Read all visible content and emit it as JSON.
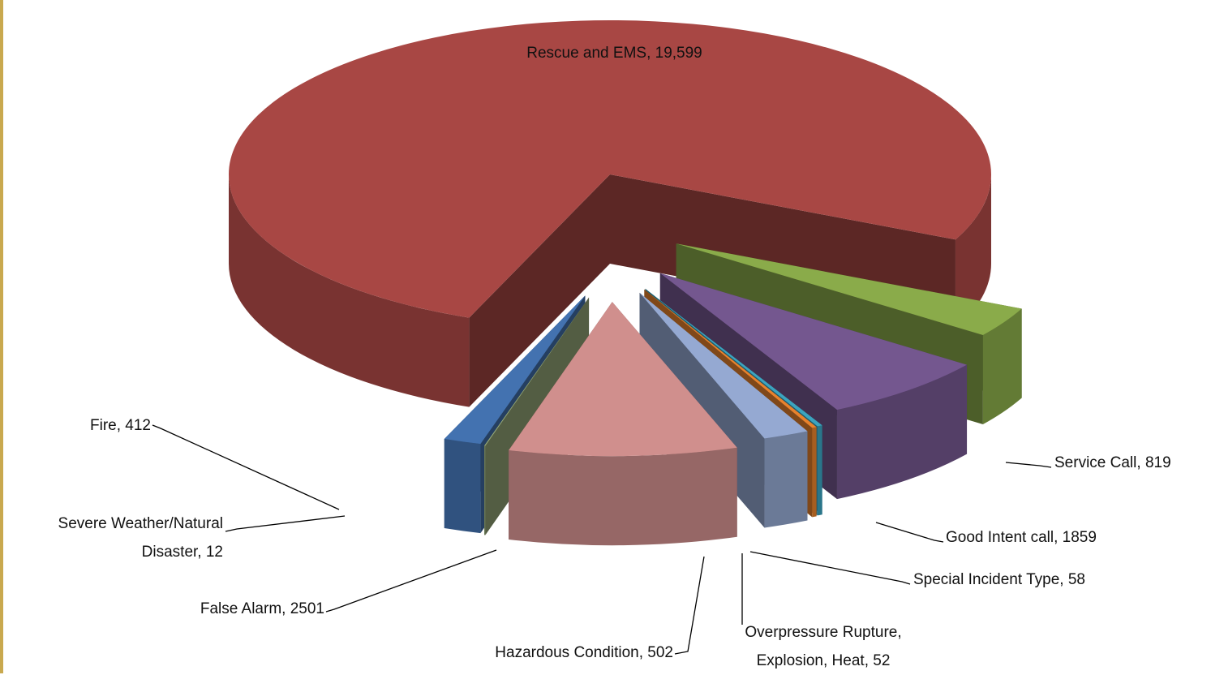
{
  "chart_data": {
    "type": "pie",
    "three_d": true,
    "exploded": true,
    "label_separator": ", ",
    "categories": [
      "Service Call",
      "Good Intent call",
      "Special Incident Type",
      "Overpressure Rupture, Explosion, Heat",
      "Hazardous Condition",
      "False Alarm",
      "Severe Weather/Natural Disaster",
      "Fire",
      "Rescue and EMS"
    ],
    "values": [
      819,
      1859,
      58,
      52,
      502,
      2501,
      12,
      412,
      19599
    ],
    "value_labels": [
      "819",
      "1859",
      "58",
      "52",
      "502",
      "2501",
      "12",
      "412",
      "19,599"
    ],
    "colors": [
      "#8aab4a",
      "#74578f",
      "#3ba4bf",
      "#e8822d",
      "#95a9d2",
      "#d08f8d",
      "#96a97a",
      "#4372b0",
      "#a84744"
    ]
  }
}
